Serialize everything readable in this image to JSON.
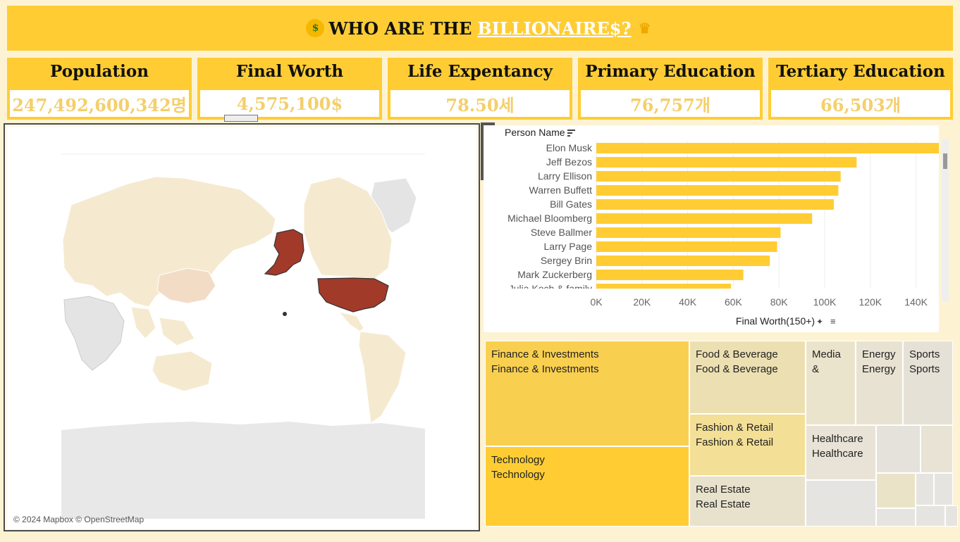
{
  "header": {
    "title_prefix": "WHO ARE THE",
    "title_highlight": "BILLIONAIRE$?",
    "icon_left": "money-mouth-face-icon",
    "icon_right": "crown-icon"
  },
  "kpis": [
    {
      "label": "Population",
      "value": "247,492,600,342명"
    },
    {
      "label": "Final Worth",
      "value": "4,575,100$"
    },
    {
      "label": "Life Expentancy",
      "value": "78.50세"
    },
    {
      "label": "Primary Education",
      "value": "76,757개"
    },
    {
      "label": "Tertiary Education",
      "value": "66,503개"
    }
  ],
  "map": {
    "credit": "© 2024 Mapbox © OpenStreetMap",
    "highlight_color": "#a23a2a",
    "base_color": "#f5ead0"
  },
  "toolbar": {
    "items": [
      "close-icon",
      "popout-icon",
      "filter-icon",
      "more-options-icon"
    ]
  },
  "colors": {
    "accent": "#ffcd33",
    "kpi_value": "#f4cf6a",
    "bar": "#ffcd33",
    "highlight": "#a23a2a"
  },
  "chart_data": {
    "type": "bar",
    "orientation": "horizontal",
    "title": "",
    "row_header": "Person Name",
    "xlabel": "Final Worth(150+)",
    "categories": [
      "Elon Musk",
      "Jeff Bezos",
      "Larry Ellison",
      "Warren Buffett",
      "Bill Gates",
      "Michael Bloomberg",
      "Steve Ballmer",
      "Larry Page",
      "Sergey Brin",
      "Mark Zuckerberg",
      "Julia Koch & family"
    ],
    "values": [
      151000,
      114000,
      107000,
      106000,
      104000,
      94500,
      80700,
      79200,
      76000,
      64400,
      59000
    ],
    "xlim": [
      0,
      150000
    ],
    "ticks": [
      0,
      20000,
      40000,
      60000,
      80000,
      100000,
      120000,
      140000
    ],
    "tick_labels": [
      "0K",
      "20K",
      "40K",
      "60K",
      "80K",
      "100K",
      "120K",
      "140K"
    ],
    "grid": true
  },
  "treemap": {
    "cells": [
      {
        "lines": [
          "Finance & Investments",
          "Finance & Investments"
        ],
        "color": "#f9cf4f"
      },
      {
        "lines": [
          "Technology",
          "Technology"
        ],
        "color": "#ffcd33"
      },
      {
        "lines": [
          "Food & Beverage",
          "Food & Beverage"
        ],
        "color": "#ece0b2"
      },
      {
        "lines": [
          "Fashion & Retail",
          "Fashion & Retail"
        ],
        "color": "#f3df96"
      },
      {
        "lines": [
          "Real Estate",
          "Real Estate"
        ],
        "color": "#e8e2cc"
      },
      {
        "lines": [
          "Media",
          "&"
        ],
        "color": "#ebe4cc"
      },
      {
        "lines": [
          "Energy",
          "Energy"
        ],
        "color": "#e8e2d2"
      },
      {
        "lines": [
          "Sports",
          "Sports"
        ],
        "color": "#e6e1d6"
      },
      {
        "lines": [
          "Healthcare",
          "Healthcare"
        ],
        "color": "#e8e3d6"
      }
    ]
  }
}
